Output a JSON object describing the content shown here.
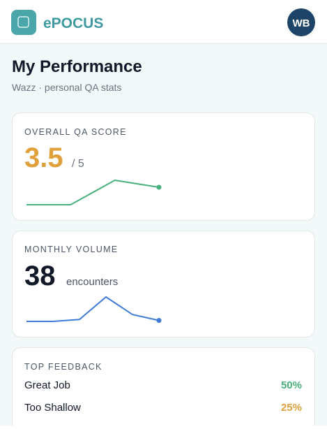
{
  "header": {
    "app_name": "ePOCUS",
    "avatar": "WB"
  },
  "page": {
    "title": "My Performance",
    "subtitle": "Wazz · personal QA stats"
  },
  "score_card": {
    "label": "OVERALL QA SCORE",
    "value": "3.5",
    "unit": "/ 5",
    "sparkline": {
      "values": [
        3.0,
        3.0,
        3.7,
        3.5
      ],
      "color": "#48b07c"
    }
  },
  "volume_card": {
    "label": "MONTHLY VOLUME",
    "value": "38",
    "unit": "encounters",
    "sparkline": {
      "values": [
        0,
        0,
        2,
        25,
        7,
        1
      ],
      "color": "#3f7bd6"
    }
  },
  "feedback_card": {
    "label": "TOP FEEDBACK",
    "items": [
      {
        "label": "Great Job",
        "value_label": "50%",
        "color": "#48b07c"
      },
      {
        "label": "Too Shallow",
        "value_label": "25%",
        "color": "#e0a03c"
      }
    ]
  }
}
